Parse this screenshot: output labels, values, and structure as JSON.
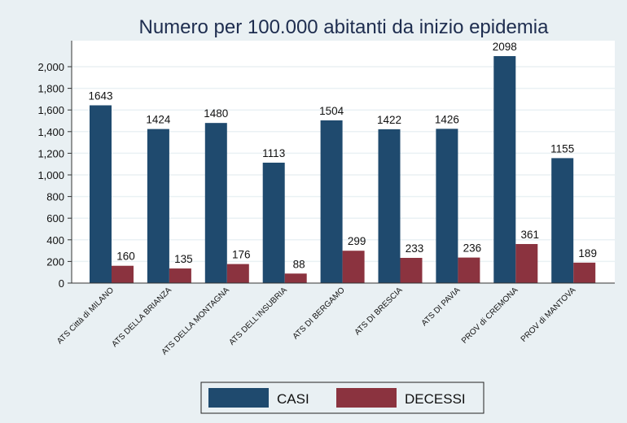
{
  "chart_data": {
    "type": "bar",
    "title": "Numero per 100.000 abitanti da inizio epidemia",
    "xlabel": "",
    "ylabel": "",
    "ylim": [
      0,
      2200
    ],
    "yticks": [
      0,
      200,
      400,
      600,
      800,
      1000,
      1200,
      1400,
      1600,
      1800,
      2000
    ],
    "ytick_labels": [
      "0",
      "200",
      "400",
      "600",
      "800",
      "1,000",
      "1,200",
      "1,400",
      "1,600",
      "1,800",
      "2,000"
    ],
    "grid": true,
    "legend_position": "bottom",
    "categories": [
      "ATS Città di MILANO",
      "ATS DELLA BRIANZA",
      "ATS DELLA MONTAGNA",
      "ATS DELL'INSUBRIA",
      "ATS DI BERGAMO",
      "ATS DI BRESCIA",
      "ATS DI PAVIA",
      "PROV di CREMONA",
      "PROV di MANTOVA"
    ],
    "series": [
      {
        "name": "CASI",
        "color": "#1f4a6e",
        "values": [
          1643,
          1424,
          1480,
          1113,
          1504,
          1422,
          1426,
          2098,
          1155
        ]
      },
      {
        "name": "DECESSI",
        "color": "#8b333f",
        "values": [
          160,
          135,
          176,
          88,
          299,
          233,
          236,
          361,
          189
        ]
      }
    ]
  }
}
